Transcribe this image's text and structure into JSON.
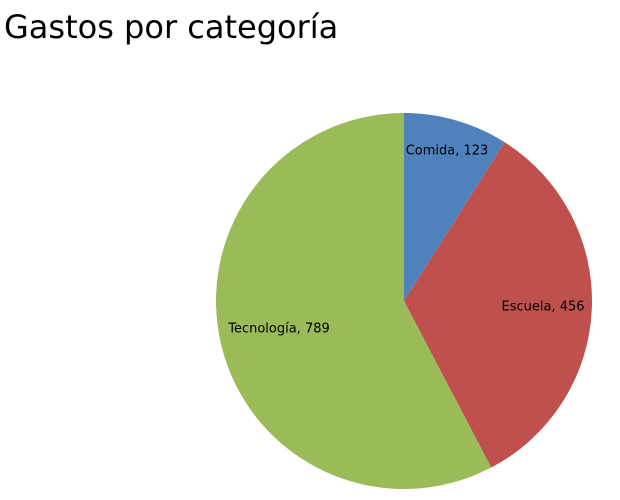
{
  "chart_data": {
    "type": "pie",
    "title": "Gastos por categoría",
    "slices": [
      {
        "label": "Comida",
        "value": 123,
        "color": "#4F81BD"
      },
      {
        "label": "Escuela",
        "value": 456,
        "color": "#C0504D"
      },
      {
        "label": "Tecnología",
        "value": 789,
        "color": "#9BBB59"
      }
    ],
    "start_angle": "12 o'clock",
    "direction": "clockwise",
    "data_labels": "category name and value, inside slices",
    "legend": "none"
  }
}
